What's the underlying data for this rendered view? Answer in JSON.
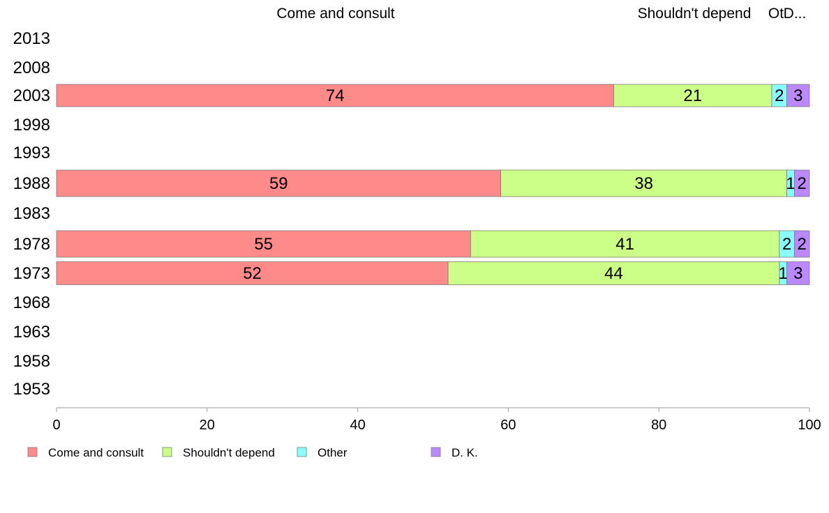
{
  "chart_data": {
    "type": "bar",
    "orientation": "horizontal",
    "stacked": true,
    "categories": [
      "2013",
      "2008",
      "2003",
      "1998",
      "1993",
      "1988",
      "1983",
      "1978",
      "1973",
      "1968",
      "1963",
      "1958",
      "1953"
    ],
    "series": [
      {
        "name": "Come and consult",
        "color": "#ff8a8a",
        "values": [
          null,
          null,
          74,
          null,
          null,
          59,
          null,
          55,
          52,
          null,
          null,
          null,
          null
        ]
      },
      {
        "name": "Shouldn't depend",
        "color": "#ccff88",
        "values": [
          null,
          null,
          21,
          null,
          null,
          38,
          null,
          41,
          44,
          null,
          null,
          null,
          null
        ]
      },
      {
        "name": "Other",
        "color": "#88ffff",
        "values": [
          null,
          null,
          2,
          null,
          null,
          1,
          null,
          2,
          1,
          null,
          null,
          null,
          null
        ]
      },
      {
        "name": "D. K.",
        "color": "#bb88ff",
        "values": [
          null,
          null,
          3,
          null,
          null,
          2,
          null,
          2,
          3,
          null,
          null,
          null,
          null
        ]
      }
    ],
    "xlim": [
      0,
      100
    ],
    "xticks": [
      0,
      20,
      40,
      60,
      80,
      100
    ],
    "top_labels": [
      "Come and consult",
      "Shouldn't depend",
      "Ot",
      "D..."
    ],
    "legend_position": "bottom",
    "grid": false
  }
}
